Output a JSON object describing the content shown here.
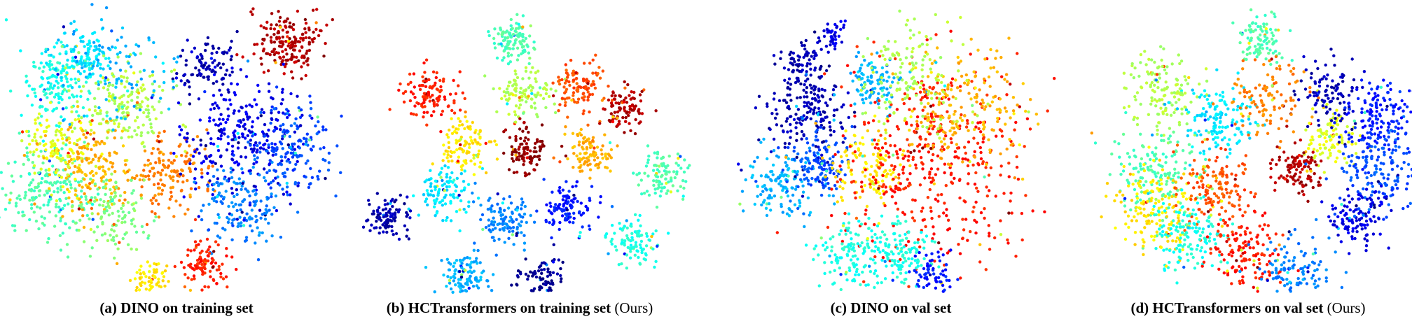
{
  "panels": [
    {
      "caption": "(a) DINO on training set"
    },
    {
      "caption": "(b) HCTransformers on training set",
      "suffix": "(Ours)"
    },
    {
      "caption": "(c) DINO on val set"
    },
    {
      "caption": "(d) HCTransformers on val set",
      "suffix": "(Ours)"
    }
  ]
}
